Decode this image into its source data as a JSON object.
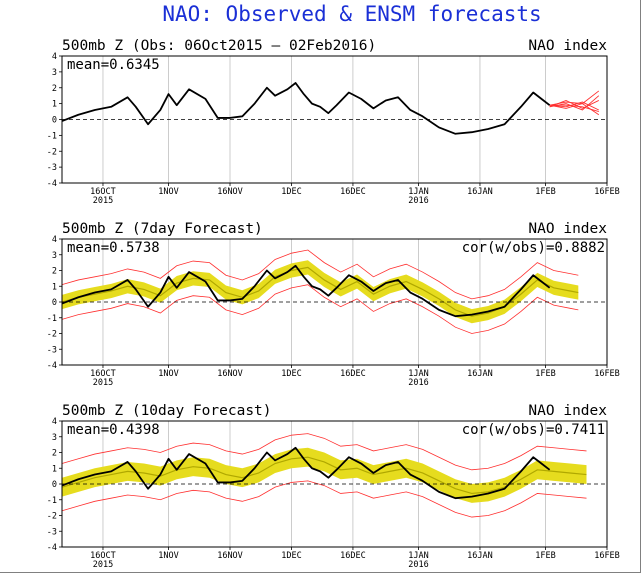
{
  "title": "NAO: Observed & ENSM forecasts",
  "colors": {
    "title": "#1a2fd6",
    "observed": "#000000",
    "forecast": "#ff3030",
    "ensemble_band": "#e6dc1e",
    "ensemble_mean": "#b0a800",
    "frame": "#000000",
    "grid": "#9a9a9a"
  },
  "chart_data": [
    {
      "type": "line",
      "title_left": "500mb Z (Obs: 06Oct2015 – 02Feb2016)",
      "title_right": "NAO index",
      "mean_label": "mean=0.6345",
      "cor_label": "",
      "ylim": [
        -4,
        4
      ],
      "yticks": [
        "4",
        "3",
        "2",
        "1",
        "0",
        "-1",
        "-2",
        "-3",
        "-4"
      ],
      "xlim_days": [
        0,
        133
      ],
      "xticks": [
        {
          "label": "16OCT",
          "sub": "2015"
        },
        {
          "label": "1NOV",
          "sub": ""
        },
        {
          "label": "16NOV",
          "sub": ""
        },
        {
          "label": "1DEC",
          "sub": ""
        },
        {
          "label": "16DEC",
          "sub": ""
        },
        {
          "label": "1JAN",
          "sub": "2016"
        },
        {
          "label": "16JAN",
          "sub": ""
        },
        {
          "label": "1FEB",
          "sub": ""
        },
        {
          "label": "16FEB",
          "sub": ""
        }
      ],
      "observed": {
        "x": [
          "06Oct2015",
          "10Oct2015",
          "14Oct2015",
          "18Oct2015",
          "22Oct2015",
          "24Oct2015",
          "27Oct2015",
          "30Oct2015",
          "01Nov2015",
          "03Nov2015",
          "06Nov2015",
          "10Nov2015",
          "13Nov2015",
          "16Nov2015",
          "19Nov2015",
          "22Nov2015",
          "25Nov2015",
          "27Nov2015",
          "30Nov2015",
          "02Dec2015",
          "04Dec2015",
          "06Dec2015",
          "08Dec2015",
          "10Dec2015",
          "12Dec2015",
          "15Dec2015",
          "18Dec2015",
          "21Dec2015",
          "24Dec2015",
          "27Dec2015",
          "30Dec2015",
          "02Jan2016",
          "06Jan2016",
          "10Jan2016",
          "14Jan2016",
          "18Jan2016",
          "22Jan2016",
          "26Jan2016",
          "29Jan2016",
          "31Jan2016",
          "02Feb2016"
        ],
        "y": [
          -0.1,
          0.3,
          0.6,
          0.8,
          1.4,
          0.8,
          -0.3,
          0.6,
          1.6,
          0.9,
          1.9,
          1.3,
          0.1,
          0.1,
          0.2,
          1.0,
          2.0,
          1.5,
          1.9,
          2.3,
          1.6,
          1.0,
          0.8,
          0.4,
          0.9,
          1.7,
          1.3,
          0.7,
          1.2,
          1.4,
          0.6,
          0.2,
          -0.5,
          -0.9,
          -0.8,
          -0.6,
          -0.3,
          0.8,
          1.7,
          1.3,
          0.9
        ]
      },
      "ensemble_members": [
        {
          "x": [
            "02Feb2016",
            "06Feb2016",
            "10Feb2016",
            "14Feb2016"
          ],
          "y": [
            0.9,
            0.9,
            0.8,
            0.5
          ]
        },
        {
          "x": [
            "02Feb2016",
            "06Feb2016",
            "10Feb2016",
            "14Feb2016"
          ],
          "y": [
            0.9,
            1.1,
            1.0,
            1.8
          ]
        },
        {
          "x": [
            "02Feb2016",
            "06Feb2016",
            "10Feb2016",
            "14Feb2016"
          ],
          "y": [
            0.8,
            1.2,
            0.7,
            1.2
          ]
        },
        {
          "x": [
            "02Feb2016",
            "06Feb2016",
            "10Feb2016",
            "14Feb2016"
          ],
          "y": [
            0.9,
            0.7,
            1.0,
            0.3
          ]
        },
        {
          "x": [
            "02Feb2016",
            "06Feb2016",
            "10Feb2016",
            "14Feb2016"
          ],
          "y": [
            0.8,
            1.0,
            0.6,
            1.5
          ]
        },
        {
          "x": [
            "02Feb2016",
            "06Feb2016",
            "10Feb2016",
            "14Feb2016"
          ],
          "y": [
            0.9,
            0.8,
            1.1,
            0.6
          ]
        }
      ]
    },
    {
      "type": "line",
      "title_left": "500mb Z (7day Forecast)",
      "title_right": "NAO index",
      "mean_label": "mean=0.5738",
      "cor_label": "cor(w/obs)=0.8882",
      "ylim": [
        -4,
        4
      ],
      "yticks": [
        "4",
        "3",
        "2",
        "1",
        "0",
        "-1",
        "-2",
        "-3",
        "-4"
      ],
      "xlim_days": [
        0,
        133
      ],
      "xticks": [
        {
          "label": "16OCT",
          "sub": "2015"
        },
        {
          "label": "1NOV",
          "sub": ""
        },
        {
          "label": "16NOV",
          "sub": ""
        },
        {
          "label": "1DEC",
          "sub": ""
        },
        {
          "label": "16DEC",
          "sub": ""
        },
        {
          "label": "1JAN",
          "sub": "2016"
        },
        {
          "label": "16JAN",
          "sub": ""
        },
        {
          "label": "1FEB",
          "sub": ""
        },
        {
          "label": "16FEB",
          "sub": ""
        }
      ],
      "observed": {
        "x": [
          "06Oct2015",
          "10Oct2015",
          "14Oct2015",
          "18Oct2015",
          "22Oct2015",
          "24Oct2015",
          "27Oct2015",
          "30Oct2015",
          "01Nov2015",
          "03Nov2015",
          "06Nov2015",
          "10Nov2015",
          "13Nov2015",
          "16Nov2015",
          "19Nov2015",
          "22Nov2015",
          "25Nov2015",
          "27Nov2015",
          "30Nov2015",
          "02Dec2015",
          "04Dec2015",
          "06Dec2015",
          "08Dec2015",
          "10Dec2015",
          "12Dec2015",
          "15Dec2015",
          "18Dec2015",
          "21Dec2015",
          "24Dec2015",
          "27Dec2015",
          "30Dec2015",
          "02Jan2016",
          "06Jan2016",
          "10Jan2016",
          "14Jan2016",
          "18Jan2016",
          "22Jan2016",
          "26Jan2016",
          "29Jan2016",
          "31Jan2016",
          "02Feb2016"
        ],
        "y": [
          -0.1,
          0.3,
          0.6,
          0.8,
          1.4,
          0.8,
          -0.3,
          0.6,
          1.6,
          0.9,
          1.9,
          1.3,
          0.1,
          0.1,
          0.2,
          1.0,
          2.0,
          1.5,
          1.9,
          2.3,
          1.6,
          1.0,
          0.8,
          0.4,
          0.9,
          1.7,
          1.3,
          0.7,
          1.2,
          1.4,
          0.6,
          0.2,
          -0.5,
          -0.9,
          -0.8,
          -0.6,
          -0.3,
          0.8,
          1.7,
          1.3,
          0.9
        ]
      },
      "ensemble_mean": {
        "x": [
          "06Oct2015",
          "10Oct2015",
          "14Oct2015",
          "18Oct2015",
          "22Oct2015",
          "26Oct2015",
          "30Oct2015",
          "03Nov2015",
          "07Nov2015",
          "11Nov2015",
          "15Nov2015",
          "19Nov2015",
          "23Nov2015",
          "27Nov2015",
          "01Dec2015",
          "05Dec2015",
          "09Dec2015",
          "13Dec2015",
          "17Dec2015",
          "21Dec2015",
          "25Dec2015",
          "29Dec2015",
          "02Jan2016",
          "06Jan2016",
          "10Jan2016",
          "14Jan2016",
          "18Jan2016",
          "22Jan2016",
          "26Jan2016",
          "30Jan2016",
          "03Feb2016",
          "07Feb2016",
          "09Feb2016"
        ],
        "y": [
          0.0,
          0.3,
          0.5,
          0.7,
          1.0,
          0.8,
          0.4,
          1.2,
          1.5,
          1.4,
          0.6,
          0.3,
          0.7,
          1.6,
          2.0,
          2.2,
          1.4,
          0.8,
          1.3,
          0.5,
          1.0,
          1.3,
          0.8,
          0.2,
          -0.5,
          -0.9,
          -0.7,
          -0.3,
          0.5,
          1.4,
          0.9,
          0.7,
          0.6
        ]
      },
      "band_halfwidth": 0.45,
      "outer_halfwidth": 1.1
    },
    {
      "type": "line",
      "title_left": "500mb Z (10day Forecast)",
      "title_right": "NAO index",
      "mean_label": "mean=0.4398",
      "cor_label": "cor(w/obs)=0.7411",
      "ylim": [
        -4,
        4
      ],
      "yticks": [
        "4",
        "3",
        "2",
        "1",
        "0",
        "-1",
        "-2",
        "-3",
        "-4"
      ],
      "xlim_days": [
        0,
        133
      ],
      "xticks": [
        {
          "label": "16OCT",
          "sub": "2015"
        },
        {
          "label": "1NOV",
          "sub": ""
        },
        {
          "label": "16NOV",
          "sub": ""
        },
        {
          "label": "1DEC",
          "sub": ""
        },
        {
          "label": "16DEC",
          "sub": ""
        },
        {
          "label": "1JAN",
          "sub": "2016"
        },
        {
          "label": "16JAN",
          "sub": ""
        },
        {
          "label": "1FEB",
          "sub": ""
        },
        {
          "label": "16FEB",
          "sub": ""
        }
      ],
      "observed": {
        "x": [
          "06Oct2015",
          "10Oct2015",
          "14Oct2015",
          "18Oct2015",
          "22Oct2015",
          "24Oct2015",
          "27Oct2015",
          "30Oct2015",
          "01Nov2015",
          "03Nov2015",
          "06Nov2015",
          "10Nov2015",
          "13Nov2015",
          "16Nov2015",
          "19Nov2015",
          "22Nov2015",
          "25Nov2015",
          "27Nov2015",
          "30Nov2015",
          "02Dec2015",
          "04Dec2015",
          "06Dec2015",
          "08Dec2015",
          "10Dec2015",
          "12Dec2015",
          "15Dec2015",
          "18Dec2015",
          "21Dec2015",
          "24Dec2015",
          "27Dec2015",
          "30Dec2015",
          "02Jan2016",
          "06Jan2016",
          "10Jan2016",
          "14Jan2016",
          "18Jan2016",
          "22Jan2016",
          "26Jan2016",
          "29Jan2016",
          "31Jan2016",
          "02Feb2016"
        ],
        "y": [
          -0.1,
          0.3,
          0.6,
          0.8,
          1.4,
          0.8,
          -0.3,
          0.6,
          1.6,
          0.9,
          1.9,
          1.3,
          0.1,
          0.1,
          0.2,
          1.0,
          2.0,
          1.5,
          1.9,
          2.3,
          1.6,
          1.0,
          0.8,
          0.4,
          0.9,
          1.7,
          1.3,
          0.7,
          1.2,
          1.4,
          0.6,
          0.2,
          -0.5,
          -0.9,
          -0.8,
          -0.6,
          -0.3,
          0.8,
          1.7,
          1.3,
          0.9
        ]
      },
      "ensemble_mean": {
        "x": [
          "06Oct2015",
          "10Oct2015",
          "14Oct2015",
          "18Oct2015",
          "22Oct2015",
          "26Oct2015",
          "30Oct2015",
          "03Nov2015",
          "07Nov2015",
          "11Nov2015",
          "15Nov2015",
          "19Nov2015",
          "23Nov2015",
          "27Nov2015",
          "01Dec2015",
          "05Dec2015",
          "09Dec2015",
          "13Dec2015",
          "17Dec2015",
          "21Dec2015",
          "25Dec2015",
          "29Dec2015",
          "02Jan2016",
          "06Jan2016",
          "10Jan2016",
          "14Jan2016",
          "18Jan2016",
          "22Jan2016",
          "26Jan2016",
          "30Jan2016",
          "03Feb2016",
          "07Feb2016",
          "11Feb2016"
        ],
        "y": [
          -0.2,
          0.1,
          0.4,
          0.6,
          0.8,
          0.7,
          0.5,
          0.9,
          1.1,
          1.0,
          0.6,
          0.4,
          0.7,
          1.3,
          1.6,
          1.7,
          1.4,
          0.9,
          1.0,
          0.6,
          0.8,
          1.0,
          0.7,
          0.2,
          -0.3,
          -0.6,
          -0.5,
          -0.2,
          0.3,
          0.9,
          0.8,
          0.7,
          0.6
        ]
      },
      "band_halfwidth": 0.6,
      "outer_halfwidth": 1.5
    }
  ]
}
